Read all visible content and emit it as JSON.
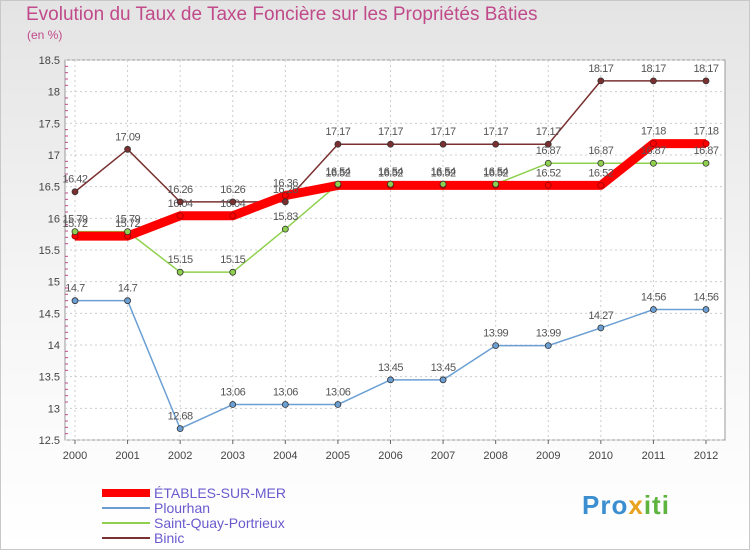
{
  "header": {
    "title": "Evolution du Taux de Taxe Foncière sur les Propriétés Bâties",
    "subtitle": "(en %)"
  },
  "logo": {
    "text": "Proxiti",
    "colors": [
      "#3b8fd1",
      "#e9a21e",
      "#5fb33f"
    ]
  },
  "chart_data": {
    "type": "line",
    "title": "Evolution du Taux de Taxe Foncière sur les Propriétés Bâties",
    "ylabel": "(en %)",
    "xlabel": "",
    "x": [
      "2000",
      "2001",
      "2002",
      "2003",
      "2004",
      "2005",
      "2006",
      "2007",
      "2008",
      "2009",
      "2010",
      "2011",
      "2012"
    ],
    "ylim": [
      12.5,
      18.5
    ],
    "yticks": [
      "12.5",
      "13",
      "13.5",
      "14",
      "14.5",
      "15",
      "15.5",
      "16",
      "16.5",
      "17",
      "17.5",
      "18",
      "18.5"
    ],
    "grid": true,
    "legend_position": "bottom-left",
    "series": [
      {
        "name": "ÉTABLES-SUR-MER",
        "color": "#ff0000",
        "width": 9,
        "values": [
          15.72,
          15.72,
          16.04,
          16.04,
          16.36,
          16.52,
          16.52,
          16.52,
          16.52,
          16.52,
          16.52,
          17.18,
          17.18
        ],
        "labels": [
          "15.72",
          "15.72",
          "16.04",
          "16.04",
          "16.36",
          "16.52",
          "16.52",
          "16.52",
          "16.52",
          "16.52",
          "16.52",
          "17.18",
          "17.18"
        ]
      },
      {
        "name": "Plourhan",
        "color": "#6b9fd3",
        "width": 1.5,
        "values": [
          14.7,
          14.7,
          12.68,
          13.06,
          13.06,
          13.06,
          13.45,
          13.45,
          13.99,
          13.99,
          14.27,
          14.56,
          14.56
        ],
        "labels": [
          "14.7",
          "14.7",
          "12.68",
          "13.06",
          "13.06",
          "13.06",
          "13.45",
          "13.45",
          "13.99",
          "13.99",
          "14.27",
          "14.56",
          "14.56"
        ]
      },
      {
        "name": "Saint-Quay-Portrieux",
        "color": "#8fd14f",
        "width": 1.5,
        "values": [
          15.79,
          15.79,
          15.15,
          15.15,
          15.83,
          16.54,
          16.54,
          16.54,
          16.54,
          16.87,
          16.87,
          16.87,
          16.87
        ],
        "labels": [
          "15.79",
          "15.79",
          "15.15",
          "15.15",
          "15.83",
          "16.54",
          "16.54",
          "16.54",
          "16.54",
          "16.87",
          "16.87",
          "16.87",
          "16.87"
        ]
      },
      {
        "name": "Binic",
        "color": "#7a3030",
        "width": 1.5,
        "values": [
          16.42,
          17.09,
          16.26,
          16.26,
          16.26,
          17.17,
          17.17,
          17.17,
          17.17,
          17.17,
          18.17,
          18.17,
          18.17
        ],
        "labels": [
          "16.42",
          "17.09",
          "16.26",
          "16.26",
          "16.26",
          "17.17",
          "17.17",
          "17.17",
          "17.17",
          "17.17",
          "18.17",
          "18.17",
          "18.17"
        ]
      }
    ]
  }
}
